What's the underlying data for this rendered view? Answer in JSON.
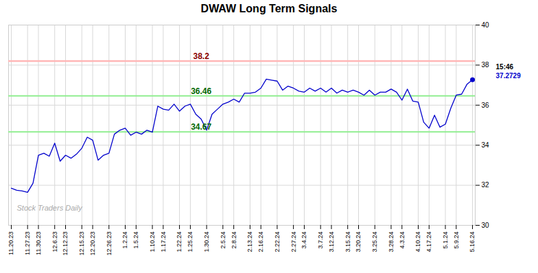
{
  "chart_data": {
    "type": "line",
    "title": "DWAW Long Term Signals",
    "categories": [
      "11.20.23",
      null,
      null,
      "11.27.23",
      null,
      "11.30.23",
      null,
      null,
      "12.6.23",
      null,
      "12.12.23",
      null,
      null,
      "12.15.23",
      null,
      "12.20.23",
      null,
      null,
      "12.26.23",
      null,
      null,
      "1.2.24",
      null,
      "1.5.24",
      null,
      null,
      "1.10.24",
      null,
      "1.17.24",
      null,
      null,
      "1.22.24",
      null,
      "1.25.24",
      null,
      null,
      "1.30.24",
      null,
      null,
      "2.5.24",
      null,
      "2.8.24",
      null,
      null,
      "2.13.24",
      null,
      "2.16.24",
      null,
      null,
      "2.22.24",
      null,
      null,
      "2.27.24",
      null,
      "3.4.24",
      null,
      null,
      "3.7.24",
      null,
      "3.12.24",
      null,
      null,
      "3.15.24",
      null,
      "3.20.24",
      null,
      null,
      "3.25.24",
      null,
      null,
      "3.28.24",
      null,
      "4.3.24",
      null,
      null,
      "4.10.24",
      null,
      "4.17.24",
      null,
      null,
      "5.1.24",
      null,
      "5.9.24",
      null,
      null,
      "5.16.24"
    ],
    "values": [
      31.85,
      31.75,
      31.72,
      31.65,
      32.1,
      33.5,
      33.6,
      33.45,
      34.1,
      33.2,
      33.5,
      33.35,
      33.55,
      33.85,
      34.4,
      34.25,
      33.25,
      33.5,
      33.6,
      34.55,
      34.75,
      34.85,
      34.5,
      34.65,
      34.55,
      34.75,
      34.65,
      35.95,
      35.8,
      35.75,
      36.05,
      35.7,
      35.95,
      36.05,
      35.55,
      35.3,
      34.75,
      35.55,
      35.8,
      36.05,
      36.15,
      36.3,
      36.15,
      36.6,
      36.6,
      36.65,
      36.85,
      37.3,
      37.25,
      37.2,
      36.75,
      36.95,
      36.85,
      36.7,
      36.65,
      36.85,
      36.7,
      36.85,
      36.65,
      36.85,
      36.6,
      36.75,
      36.65,
      36.75,
      36.65,
      36.5,
      36.75,
      36.5,
      36.65,
      36.65,
      36.8,
      36.65,
      36.25,
      36.8,
      36.2,
      36.15,
      35.15,
      34.85,
      35.5,
      34.9,
      35.05,
      35.85,
      36.5,
      36.55,
      37.05,
      37.2729
    ],
    "color": "#0000cc",
    "reference_lines": [
      {
        "value": 38.2,
        "color": "#ffb6b6",
        "label": "38.2",
        "label_color": "#8b0000"
      },
      {
        "value": 36.46,
        "color": "#90ee90",
        "label": "36.46",
        "label_color": "#006600"
      },
      {
        "value": 34.67,
        "color": "#90ee90",
        "label": "34.67",
        "label_color": "#006600"
      }
    ],
    "last_point_labels": [
      {
        "text": "15:46",
        "color": "#000000"
      },
      {
        "text": "37.2729",
        "color": "#0000cc"
      }
    ],
    "watermark": "Stock Traders Daily",
    "ylim": [
      30,
      40
    ],
    "yticks": [
      30,
      32,
      34,
      36,
      38,
      40
    ],
    "grid": true
  }
}
